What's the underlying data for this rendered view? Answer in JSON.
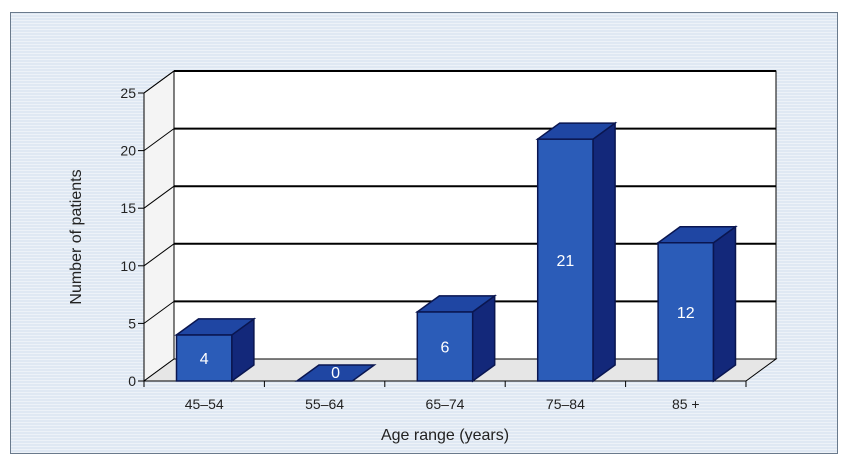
{
  "chart_data": {
    "type": "bar",
    "categories": [
      "45–54",
      "55–64",
      "65–74",
      "75–84",
      "85 +"
    ],
    "values": [
      4,
      0,
      6,
      21,
      12
    ],
    "data_labels": [
      "4",
      "0",
      "6",
      "21",
      "12"
    ],
    "ylim": [
      0,
      25
    ],
    "yticks": [
      0,
      5,
      10,
      15,
      20,
      25
    ],
    "ytick_labels": [
      "0",
      "5",
      "10",
      "15",
      "20",
      "25"
    ],
    "xlabel": "Age range (years)",
    "ylabel": "Number of patients",
    "grid": true,
    "three_d": true,
    "colors": {
      "bar_front": "#2b5cb8",
      "bar_top": "#1f46a3",
      "bar_side": "#13287a",
      "outline": "#0a1650",
      "back_wall": "#ffffff",
      "floor": "#e6e6e6",
      "gridline": "#000000",
      "background": "#dfe8f3"
    }
  }
}
